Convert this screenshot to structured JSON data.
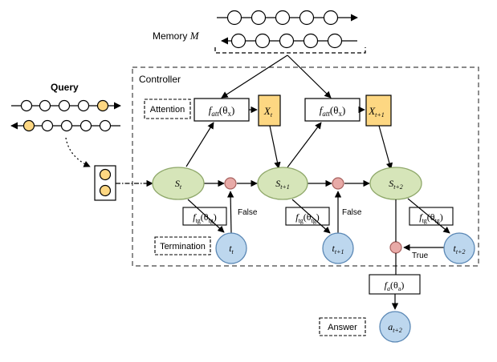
{
  "memory": {
    "label": "Memory",
    "symbol": "M"
  },
  "query": {
    "label": "Query"
  },
  "controller": {
    "label": "Controller"
  },
  "legend": {
    "attention": "Attention",
    "termination": "Termination",
    "answer": "Answer"
  },
  "functions": {
    "f_att": "att",
    "theta_x": "x",
    "f_tg": "tg",
    "theta_tg": "tg",
    "f_a": "a",
    "theta_a": "a",
    "theta": "θ"
  },
  "nodes": {
    "x_t": {
      "main": "X",
      "sub": "t"
    },
    "x_t1": {
      "main": "X",
      "sub": "t+1"
    },
    "s_t": {
      "main": "S",
      "sub": "t"
    },
    "s_t1": {
      "main": "S",
      "sub": "t+1"
    },
    "s_t2": {
      "main": "S",
      "sub": "t+2"
    },
    "t_t": {
      "main": "t",
      "sub": "t"
    },
    "t_t1": {
      "main": "t",
      "sub": "t+1"
    },
    "t_t2": {
      "main": "t",
      "sub": "t+2"
    },
    "a_t2": {
      "main": "a",
      "sub": "t+2"
    }
  },
  "edge_labels": {
    "false_1": "False",
    "false_2": "False",
    "true_1": "True"
  },
  "colors": {
    "memory_cell": "#ffffff",
    "query_highlight": "#fdd782",
    "attention_box": "#fdd782",
    "state_node": "#d6e5b9",
    "state_stroke": "#8fa86a",
    "termination_node": "#bdd7ee",
    "termination_stroke": "#5b88b5",
    "gate_node": "#e8aaa7",
    "gate_stroke": "#a8625f"
  }
}
